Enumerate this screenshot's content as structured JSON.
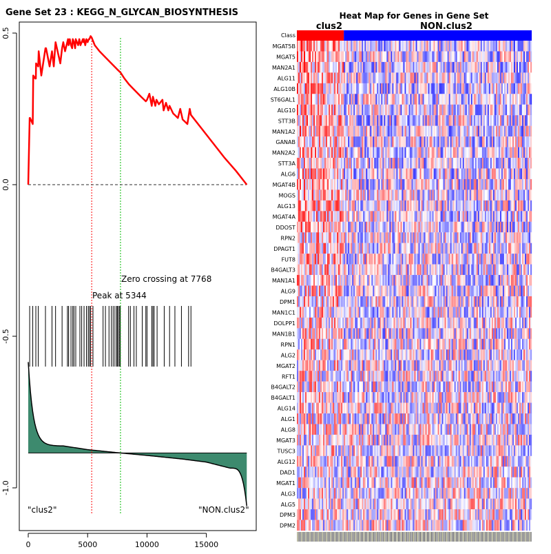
{
  "chart_data": [
    {
      "type": "line",
      "title": "Gene Set  23 : KEGG_N_GLYCAN_BIOSYNTHESIS",
      "xlim": [
        0,
        18500
      ],
      "ylim": [
        -1.1,
        0.55
      ],
      "x_ticks": [
        0,
        5000,
        10000,
        15000
      ],
      "x_tick_labels": [
        "0",
        "5000",
        "10000",
        "15000"
      ],
      "y_ticks": [
        0.5,
        0.0,
        -0.5,
        -1.0
      ],
      "y_tick_labels": [
        "0.5",
        "0.0",
        "-0.5",
        "-1.0"
      ],
      "line_color": "#ff0000",
      "running_enrichment_score": {
        "x": [
          0,
          120,
          150,
          380,
          420,
          600,
          640,
          660,
          840,
          880,
          1100,
          1450,
          1500,
          1800,
          2000,
          2150,
          2300,
          2700,
          2850,
          2950,
          3100,
          3350,
          3400,
          3500,
          3600,
          3700,
          3750,
          3850,
          3950,
          4000,
          4100,
          4200,
          4300,
          4400,
          4500,
          4600,
          4650,
          4700,
          4800,
          4900,
          5000,
          5100,
          5150,
          5250,
          5344,
          5600,
          6000,
          6500,
          7000,
          7500,
          7768,
          8100,
          8500,
          9000,
          9500,
          9900,
          10000,
          10200,
          10400,
          10500,
          10700,
          10800,
          11000,
          11300,
          11400,
          11600,
          11800,
          11900,
          12200,
          12600,
          12800,
          13000,
          13400,
          13600,
          13700,
          14500,
          15500,
          16500,
          17500,
          18400
        ],
        "y": [
          0.0,
          0.22,
          0.22,
          0.2,
          0.36,
          0.35,
          0.35,
          0.4,
          0.39,
          0.44,
          0.36,
          0.45,
          0.45,
          0.39,
          0.44,
          0.39,
          0.47,
          0.4,
          0.45,
          0.47,
          0.44,
          0.48,
          0.46,
          0.48,
          0.46,
          0.45,
          0.48,
          0.47,
          0.45,
          0.48,
          0.47,
          0.46,
          0.48,
          0.46,
          0.47,
          0.48,
          0.47,
          0.48,
          0.46,
          0.48,
          0.47,
          0.48,
          0.48,
          0.49,
          0.485,
          0.46,
          0.44,
          0.42,
          0.4,
          0.38,
          0.37,
          0.35,
          0.33,
          0.31,
          0.29,
          0.275,
          0.28,
          0.3,
          0.26,
          0.29,
          0.26,
          0.28,
          0.265,
          0.28,
          0.245,
          0.27,
          0.245,
          0.26,
          0.235,
          0.22,
          0.25,
          0.215,
          0.2,
          0.25,
          0.23,
          0.19,
          0.14,
          0.09,
          0.045,
          0.0
        ]
      },
      "baseline": 0.0,
      "gene_hit_positions": [
        120,
        380,
        640,
        840,
        1450,
        2000,
        2300,
        2850,
        3300,
        3400,
        3600,
        3750,
        3850,
        4000,
        4350,
        4500,
        4700,
        4900,
        5050,
        5150,
        5250,
        5450,
        6300,
        6500,
        6800,
        7000,
        7150,
        7300,
        7450,
        7500,
        7600,
        7700,
        7750,
        8450,
        8600,
        8900,
        9100,
        9600,
        9900,
        10000,
        10400,
        10500,
        10600,
        10850,
        11450,
        11900,
        12350,
        12900,
        13500,
        13700
      ],
      "hit_mark_range": [
        -0.4,
        -0.6
      ],
      "ranked_metric": {
        "offset": -0.885,
        "shape": "sorted metric decreasing from left end to right end",
        "fill_color": "#3d8a6e",
        "values_at": {
          "0": -0.585,
          "500": -0.8,
          "1500": -0.843,
          "3000": -0.862,
          "5000": -0.874,
          "7768": -0.885,
          "10000": -0.893,
          "13000": -0.905,
          "15000": -0.915,
          "17000": -0.935,
          "18000": -0.97,
          "18400": -1.06
        }
      },
      "vertical_lines": [
        {
          "x": 5344,
          "color": "#ff0000",
          "label": "Peak at 5344"
        },
        {
          "x": 7768,
          "color": "#00bb00",
          "label": "Zero crossing at 7768"
        }
      ],
      "class_labels": [
        "\"clus2\"",
        "\"NON.clus2\""
      ]
    },
    {
      "type": "heatmap",
      "title": "Heat Map for Genes in Gene Set",
      "classes": [
        {
          "name": "clus2",
          "color": "#ff0000"
        },
        {
          "name": "NON.clus2",
          "color": "#0000ff"
        }
      ],
      "class_row_label": "Class",
      "class_fraction_clus2": 0.2,
      "genes": [
        "MGAT5B",
        "MGAT5",
        "MAN2A1",
        "ALG11",
        "ALG10B",
        "ST6GAL1",
        "ALG10",
        "STT3B",
        "MAN1A2",
        "GANAB",
        "MAN2A2",
        "STT3A",
        "ALG6",
        "MGAT4B",
        "MOGS",
        "ALG13",
        "MGAT4A",
        "DDOST",
        "RPN2",
        "DPAGT1",
        "FUT8",
        "B4GALT3",
        "MAN1A1",
        "ALG9",
        "DPM1",
        "MAN1C1",
        "DOLPP1",
        "MAN1B1",
        "RPN1",
        "ALG2",
        "MGAT2",
        "RFT1",
        "B4GALT2",
        "B4GALT1",
        "ALG14",
        "ALG1",
        "ALG8",
        "MGAT3",
        "TUSC3",
        "ALG12",
        "DAD1",
        "MGAT1",
        "ALG3",
        "ALG5",
        "DPM3",
        "DPM2"
      ],
      "n_samples": 170,
      "color_scale": [
        "#0000ff",
        "#ffffff",
        "#ff0000"
      ]
    }
  ]
}
